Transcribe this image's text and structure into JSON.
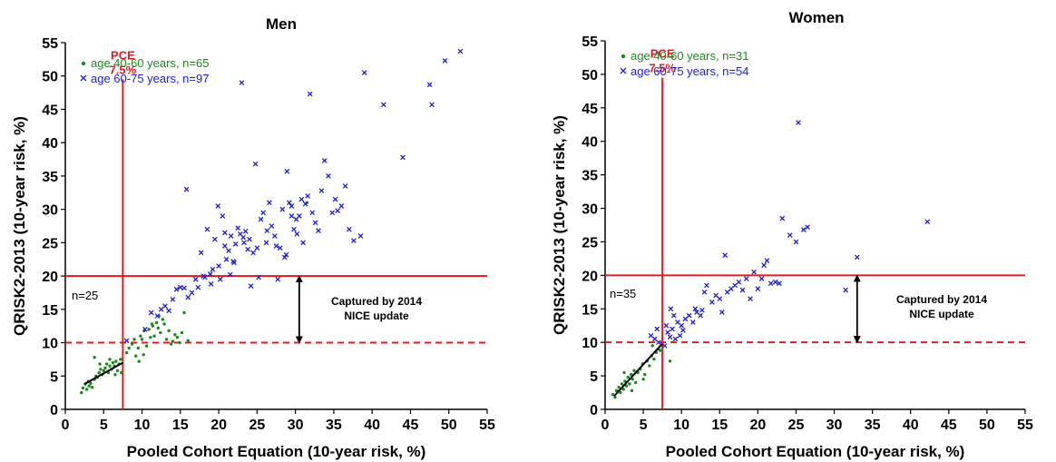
{
  "colors": {
    "age_40_60": "#1a8a1a",
    "age_60_75": "#1f1fd0",
    "threshold": "#e41a1c",
    "axis": "#000000"
  },
  "chart_data": [
    {
      "type": "scatter",
      "title": "Men",
      "xlabel": "Pooled Cohort Equation (10-year risk, %)",
      "ylabel": "QRISK2-2013 (10-year risk, %)",
      "xlim": [
        0,
        55
      ],
      "ylim": [
        0,
        55
      ],
      "xticks": [
        0,
        5,
        10,
        15,
        20,
        25,
        30,
        35,
        40,
        45,
        50,
        55
      ],
      "yticks": [
        0,
        5,
        10,
        15,
        20,
        25,
        30,
        35,
        40,
        45,
        50,
        55
      ],
      "legend": [
        "age 40-60 years, n=65",
        "age 60-75 years, n=97"
      ],
      "legend_position": "top-left",
      "pce_label": [
        "PCE",
        "7.5%"
      ],
      "pce_x": 7.5,
      "line_y20": 20,
      "line_y10": 10,
      "n_label": "n=25",
      "annotation": [
        "Captured by 2014",
        "NICE update"
      ],
      "annotation_x": 30.5,
      "trend_line": [
        [
          2.5,
          3.8
        ],
        [
          7.5,
          7.0
        ]
      ],
      "series": [
        {
          "name": "age 40-60 years, n=65",
          "marker": "dot",
          "points": [
            [
              2.1,
              2.5
            ],
            [
              2.3,
              3.2
            ],
            [
              2.6,
              3.8
            ],
            [
              2.8,
              3.0
            ],
            [
              3.0,
              4.2
            ],
            [
              3.1,
              3.5
            ],
            [
              3.3,
              3.9
            ],
            [
              3.5,
              3.3
            ],
            [
              3.8,
              4.5
            ],
            [
              4.0,
              5.0
            ],
            [
              4.2,
              4.8
            ],
            [
              4.4,
              5.5
            ],
            [
              4.6,
              6.0
            ],
            [
              4.8,
              5.2
            ],
            [
              5.0,
              5.8
            ],
            [
              5.2,
              6.2
            ],
            [
              5.4,
              6.8
            ],
            [
              5.6,
              5.5
            ],
            [
              5.8,
              6.5
            ],
            [
              6.0,
              6.0
            ],
            [
              6.2,
              7.0
            ],
            [
              6.4,
              6.5
            ],
            [
              6.6,
              7.2
            ],
            [
              6.8,
              5.8
            ],
            [
              7.0,
              6.8
            ],
            [
              7.2,
              7.5
            ],
            [
              3.8,
              7.8
            ],
            [
              4.5,
              6.8
            ],
            [
              5.8,
              7.5
            ],
            [
              6.5,
              5.2
            ],
            [
              7.3,
              5.5
            ],
            [
              8.0,
              8.5
            ],
            [
              8.3,
              9.2
            ],
            [
              8.7,
              9.8
            ],
            [
              9.0,
              10.5
            ],
            [
              9.2,
              8.0
            ],
            [
              9.5,
              9.2
            ],
            [
              9.8,
              11.0
            ],
            [
              10.0,
              10.5
            ],
            [
              10.3,
              11.8
            ],
            [
              10.6,
              9.5
            ],
            [
              10.9,
              12.0
            ],
            [
              11.1,
              10.8
            ],
            [
              11.4,
              12.5
            ],
            [
              11.6,
              11.0
            ],
            [
              11.9,
              13.0
            ],
            [
              12.1,
              12.2
            ],
            [
              12.4,
              11.5
            ],
            [
              12.7,
              13.5
            ],
            [
              12.9,
              12.8
            ],
            [
              13.2,
              10.5
            ],
            [
              13.5,
              11.8
            ],
            [
              13.8,
              9.8
            ],
            [
              14.0,
              10.2
            ],
            [
              14.3,
              11.2
            ],
            [
              14.6,
              10.8
            ],
            [
              14.9,
              10.0
            ],
            [
              15.2,
              11.5
            ],
            [
              15.5,
              14.5
            ],
            [
              11.3,
              12.8
            ],
            [
              10.2,
              8.2
            ],
            [
              12.2,
              14.0
            ],
            [
              9.6,
              7.2
            ],
            [
              16.0,
              10.3
            ],
            [
              31.5,
              31.0
            ]
          ]
        },
        {
          "name": "age 60-75 years, n=97",
          "marker": "x",
          "points": [
            [
              8.0,
              10.3
            ],
            [
              10.4,
              12.0
            ],
            [
              11.2,
              14.5
            ],
            [
              12.0,
              14.0
            ],
            [
              12.5,
              15.0
            ],
            [
              13.0,
              15.5
            ],
            [
              13.5,
              14.8
            ],
            [
              14.0,
              16.5
            ],
            [
              14.5,
              18.0
            ],
            [
              15.0,
              18.3
            ],
            [
              15.5,
              18.2
            ],
            [
              15.8,
              33.0
            ],
            [
              16.0,
              16.8
            ],
            [
              16.5,
              17.5
            ],
            [
              17.0,
              19.5
            ],
            [
              17.3,
              18.3
            ],
            [
              17.7,
              23.5
            ],
            [
              18.0,
              20.0
            ],
            [
              18.5,
              27.0
            ],
            [
              18.9,
              20.3
            ],
            [
              19.2,
              21.0
            ],
            [
              19.5,
              25.5
            ],
            [
              19.9,
              30.5
            ],
            [
              20.2,
              19.5
            ],
            [
              20.5,
              29.0
            ],
            [
              20.8,
              24.5
            ],
            [
              21.0,
              22.5
            ],
            [
              21.3,
              23.8
            ],
            [
              21.6,
              26.0
            ],
            [
              21.9,
              22.2
            ],
            [
              22.2,
              24.8
            ],
            [
              22.5,
              27.2
            ],
            [
              22.8,
              26.3
            ],
            [
              23.0,
              49.0
            ],
            [
              23.2,
              25.8
            ],
            [
              23.5,
              26.7
            ],
            [
              23.8,
              24.0
            ],
            [
              24.2,
              18.5
            ],
            [
              24.5,
              23.5
            ],
            [
              24.8,
              36.8
            ],
            [
              25.2,
              19.8
            ],
            [
              25.5,
              28.5
            ],
            [
              25.8,
              29.5
            ],
            [
              26.2,
              25.0
            ],
            [
              26.6,
              31.0
            ],
            [
              26.9,
              27.5
            ],
            [
              27.3,
              26.0
            ],
            [
              27.7,
              19.5
            ],
            [
              28.0,
              24.2
            ],
            [
              28.3,
              30.0
            ],
            [
              28.6,
              22.8
            ],
            [
              28.9,
              35.7
            ],
            [
              29.2,
              31.0
            ],
            [
              29.5,
              30.5
            ],
            [
              29.8,
              27.0
            ],
            [
              30.1,
              28.5
            ],
            [
              30.5,
              29.0
            ],
            [
              30.8,
              31.5
            ],
            [
              31.0,
              25.0
            ],
            [
              31.3,
              30.8
            ],
            [
              31.6,
              32.0
            ],
            [
              31.9,
              47.3
            ],
            [
              32.2,
              29.5
            ],
            [
              32.6,
              28.0
            ],
            [
              33.0,
              26.8
            ],
            [
              33.4,
              32.8
            ],
            [
              33.8,
              37.3
            ],
            [
              34.3,
              35.0
            ],
            [
              34.8,
              29.5
            ],
            [
              35.2,
              31.5
            ],
            [
              35.5,
              29.8
            ],
            [
              36.0,
              30.5
            ],
            [
              36.5,
              33.5
            ],
            [
              37.0,
              27.0
            ],
            [
              37.6,
              25.3
            ],
            [
              38.5,
              26.0
            ],
            [
              39.0,
              50.5
            ],
            [
              41.5,
              45.7
            ],
            [
              44.0,
              37.8
            ],
            [
              47.5,
              48.7
            ],
            [
              47.8,
              45.7
            ],
            [
              49.5,
              52.3
            ],
            [
              51.5,
              53.7
            ],
            [
              20.0,
              21.5
            ],
            [
              22.0,
              22.0
            ],
            [
              23.3,
              25.0
            ],
            [
              25.0,
              24.2
            ],
            [
              26.3,
              26.8
            ],
            [
              27.5,
              24.5
            ],
            [
              28.8,
              23.2
            ],
            [
              30.2,
              26.3
            ],
            [
              20.8,
              26.5
            ],
            [
              24.0,
              25.5
            ],
            [
              21.5,
              20.2
            ],
            [
              19.0,
              18.8
            ],
            [
              18.2,
              19.8
            ],
            [
              29.5,
              29.0
            ]
          ]
        }
      ]
    },
    {
      "type": "scatter",
      "title": "Women",
      "xlabel": "Pooled Cohort Equation (10-year risk, %)",
      "ylabel": "QRISK2-2013 (10-year risk, %)",
      "xlim": [
        0,
        55
      ],
      "ylim": [
        0,
        55
      ],
      "xticks": [
        0,
        5,
        10,
        15,
        20,
        25,
        30,
        35,
        40,
        45,
        50,
        55
      ],
      "yticks": [
        0,
        5,
        10,
        15,
        20,
        25,
        30,
        35,
        40,
        45,
        50,
        55
      ],
      "legend": [
        "age 40-60 years, n=31",
        "age 60-75 years, n=54"
      ],
      "legend_position": "top-left",
      "pce_label": [
        "PCE",
        "7.5%"
      ],
      "pce_x": 7.5,
      "line_y20": 20,
      "line_y10": 10,
      "n_label": "n=35",
      "annotation": [
        "Captured by 2014",
        "NICE update"
      ],
      "annotation_x": 33,
      "trend_line": [
        [
          1.2,
          2.0
        ],
        [
          7.5,
          9.8
        ]
      ],
      "series": [
        {
          "name": "age 40-60 years, n=31",
          "marker": "dot",
          "points": [
            [
              1.0,
              2.2
            ],
            [
              1.3,
              1.8
            ],
            [
              1.5,
              2.8
            ],
            [
              1.8,
              3.3
            ],
            [
              2.0,
              2.5
            ],
            [
              2.2,
              3.8
            ],
            [
              2.4,
              3.0
            ],
            [
              2.6,
              4.2
            ],
            [
              2.8,
              3.5
            ],
            [
              3.0,
              4.8
            ],
            [
              3.2,
              3.8
            ],
            [
              3.4,
              5.2
            ],
            [
              3.6,
              4.5
            ],
            [
              3.8,
              5.8
            ],
            [
              4.0,
              4.0
            ],
            [
              4.3,
              5.5
            ],
            [
              4.6,
              6.0
            ],
            [
              4.9,
              6.8
            ],
            [
              5.2,
              5.2
            ],
            [
              5.5,
              7.2
            ],
            [
              5.8,
              6.5
            ],
            [
              6.1,
              8.0
            ],
            [
              6.4,
              7.5
            ],
            [
              6.7,
              8.5
            ],
            [
              7.0,
              9.0
            ],
            [
              7.2,
              8.8
            ],
            [
              2.5,
              5.5
            ],
            [
              3.5,
              2.8
            ],
            [
              5.0,
              4.5
            ],
            [
              8.5,
              7.2
            ],
            [
              6.2,
              9.5
            ]
          ]
        },
        {
          "name": "age 60-75 years, n=54",
          "marker": "x",
          "points": [
            [
              6.0,
              11.0
            ],
            [
              6.5,
              10.5
            ],
            [
              6.8,
              12.0
            ],
            [
              7.0,
              10.0
            ],
            [
              7.8,
              9.5
            ],
            [
              8.2,
              11.5
            ],
            [
              8.5,
              10.8
            ],
            [
              8.6,
              15.0
            ],
            [
              8.8,
              12.0
            ],
            [
              9.0,
              14.0
            ],
            [
              9.2,
              10.5
            ],
            [
              9.5,
              13.0
            ],
            [
              9.8,
              11.0
            ],
            [
              10.0,
              12.5
            ],
            [
              10.5,
              13.5
            ],
            [
              11.0,
              14.0
            ],
            [
              11.5,
              13.0
            ],
            [
              12.0,
              14.5
            ],
            [
              12.5,
              14.0
            ],
            [
              13.0,
              17.5
            ],
            [
              13.3,
              18.5
            ],
            [
              14.0,
              16.0
            ],
            [
              14.5,
              17.0
            ],
            [
              15.0,
              16.5
            ],
            [
              15.3,
              14.5
            ],
            [
              15.7,
              23.0
            ],
            [
              16.0,
              17.5
            ],
            [
              16.5,
              18.0
            ],
            [
              17.0,
              18.5
            ],
            [
              17.5,
              19.0
            ],
            [
              18.0,
              17.8
            ],
            [
              18.5,
              19.5
            ],
            [
              19.0,
              16.5
            ],
            [
              19.5,
              20.5
            ],
            [
              20.0,
              18.0
            ],
            [
              20.5,
              19.5
            ],
            [
              20.8,
              21.5
            ],
            [
              21.2,
              22.2
            ],
            [
              21.7,
              18.8
            ],
            [
              22.3,
              19.0
            ],
            [
              22.8,
              18.8
            ],
            [
              23.2,
              28.5
            ],
            [
              24.2,
              26.0
            ],
            [
              25.0,
              25.0
            ],
            [
              25.3,
              42.8
            ],
            [
              26.0,
              26.8
            ],
            [
              26.5,
              27.2
            ],
            [
              31.5,
              17.8
            ],
            [
              33.0,
              22.7
            ],
            [
              42.2,
              28.0
            ],
            [
              10.2,
              11.8
            ],
            [
              11.8,
              15.0
            ],
            [
              8.0,
              12.5
            ],
            [
              12.7,
              14.8
            ]
          ]
        }
      ]
    }
  ]
}
